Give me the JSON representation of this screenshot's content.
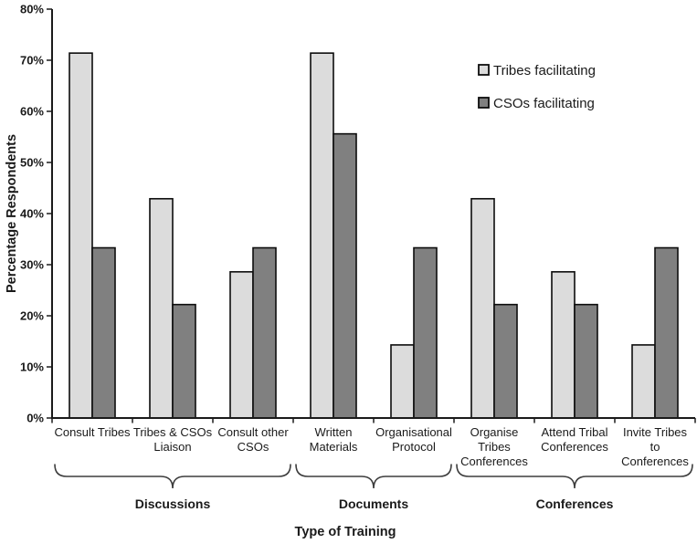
{
  "chart_data": {
    "type": "bar",
    "title": "",
    "xlabel": "Type of Training",
    "ylabel": "Percentage Respondents",
    "ylim": [
      0,
      80
    ],
    "ytick_step": 10,
    "ytick_suffix": "%",
    "grid": false,
    "legend_position": "top-right",
    "categories": [
      {
        "label": "Consult Tribes",
        "lines": [
          "Consult Tribes"
        ]
      },
      {
        "label": "Tribes & CSOs Liaison",
        "lines": [
          "Tribes & CSOs",
          "Liaison"
        ]
      },
      {
        "label": "Consult other CSOs",
        "lines": [
          "Consult other",
          "CSOs"
        ]
      },
      {
        "label": "Written Materials",
        "lines": [
          "Written",
          "Materials"
        ]
      },
      {
        "label": "Organisational Protocol",
        "lines": [
          "Organisational",
          "Protocol"
        ]
      },
      {
        "label": "Organise Tribes Conferences",
        "lines": [
          "Organise",
          "Tribes",
          "Conferences"
        ]
      },
      {
        "label": "Attend Tribal Conferences",
        "lines": [
          "Attend Tribal",
          "Conferences"
        ]
      },
      {
        "label": "Invite Tribes to Conferences",
        "lines": [
          "Invite Tribes",
          "to",
          "Conferences"
        ]
      }
    ],
    "series": [
      {
        "name": "Tribes facilitating",
        "color": "#dcdcdc",
        "values": [
          71.4,
          42.9,
          28.6,
          71.4,
          14.3,
          42.9,
          28.6,
          14.3
        ]
      },
      {
        "name": "CSOs facilitating",
        "color": "#808080",
        "values": [
          33.3,
          22.2,
          33.3,
          55.6,
          33.3,
          22.2,
          22.2,
          33.3
        ]
      }
    ],
    "groups": [
      {
        "label": "Discussions",
        "from": 0,
        "to": 2
      },
      {
        "label": "Documents",
        "from": 3,
        "to": 4
      },
      {
        "label": "Conferences",
        "from": 5,
        "to": 7
      }
    ]
  }
}
